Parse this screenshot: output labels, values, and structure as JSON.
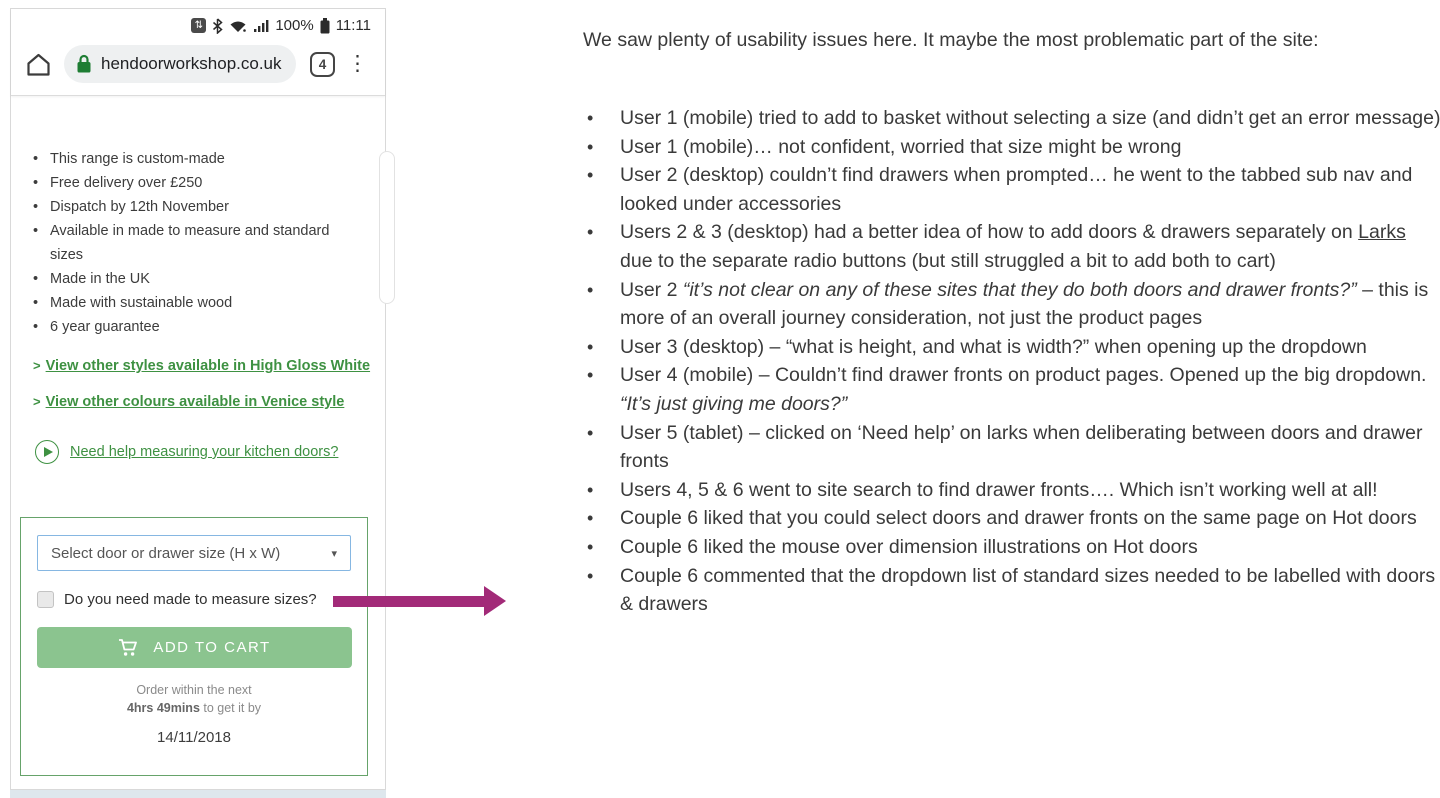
{
  "colors": {
    "link_green": "#3e9142",
    "button_green": "#8bc48f",
    "box_border_green": "#66a36a",
    "dropdown_border_blue": "#86b7e2",
    "arrow_magenta": "#a22a78"
  },
  "phone": {
    "status": {
      "icons": [
        "power-saver",
        "bluetooth",
        "wifi",
        "signal-bars",
        "battery"
      ],
      "power_glyph": "⇅",
      "battery_pct": "100%",
      "time": "11:11"
    },
    "browser": {
      "url": "hendoorworkshop.co.uk",
      "tab_count": "4",
      "menu_glyph": "⋮"
    },
    "features": [
      "This range is custom-made",
      "Free delivery over £250",
      "Dispatch by 12th November",
      "Available in made to measure and standard sizes",
      "Made in the UK",
      "Made with sustainable wood",
      "6 year guarantee"
    ],
    "links": [
      {
        "prefix": ">",
        "text": "View other styles available in High Gloss White"
      },
      {
        "prefix": ">",
        "text": "View other colours available in Venice style"
      }
    ],
    "help": {
      "text": "Need help measuring your kitchen doors?"
    },
    "product": {
      "dropdown_label": "Select door or drawer size (H x W)",
      "dropdown_arrow": "▾",
      "checkbox_label": "Do you need made to measure sizes?",
      "add_to_cart": "ADD TO CART",
      "order_line1": "Order within the next",
      "order_bold": "4hrs 49mins",
      "order_rest": " to get it by",
      "order_date": "14/11/2018"
    }
  },
  "notes": {
    "title": "We saw plenty of usability issues here.  It maybe the most problematic part of the site:",
    "bullets": [
      {
        "segments": [
          {
            "t": "User 1 (mobile) tried to add to basket without selecting a size (and didn’t get an error message)"
          }
        ]
      },
      {
        "segments": [
          {
            "t": "User 1 (mobile)… not confident, worried that size might be wrong"
          }
        ]
      },
      {
        "segments": [
          {
            "t": "User 2 (desktop) couldn’t find drawers when prompted… he went to the tabbed sub nav and looked under accessories"
          }
        ]
      },
      {
        "segments": [
          {
            "t": "Users 2 & 3 (desktop) had a better idea of how to add doors & drawers separately on "
          },
          {
            "t": "Larks",
            "u": true
          },
          {
            "t": " due to the separate radio buttons (but still struggled a bit to add both to cart)"
          }
        ]
      },
      {
        "segments": [
          {
            "t": "User 2 "
          },
          {
            "t": "“it’s not clear on any of these sites that they do both doors and drawer fronts?”",
            "i": true
          },
          {
            "t": " – this is more of an overall journey consideration, not just the product pages"
          }
        ]
      },
      {
        "segments": [
          {
            "t": "User 3 (desktop) – “what is height, and what is width?” when opening up the dropdown"
          }
        ]
      },
      {
        "segments": [
          {
            "t": "User 4 (mobile) – Couldn’t find drawer fronts on product pages.  Opened up the big dropdown.  "
          },
          {
            "t": "“It’s just giving me doors?”",
            "i": true
          }
        ]
      },
      {
        "segments": [
          {
            "t": "User 5 (tablet) – clicked on ‘Need help’ on larks when deliberating between doors and drawer fronts"
          }
        ]
      },
      {
        "segments": [
          {
            "t": "Users 4, 5 & 6 went to site search to find drawer fronts…. Which isn’t working well at all!"
          }
        ]
      },
      {
        "segments": [
          {
            "t": "Couple 6 liked that you could select doors and drawer fronts on the same page on Hot doors"
          }
        ]
      },
      {
        "segments": [
          {
            "t": "Couple 6 liked the mouse over dimension illustrations on Hot doors"
          }
        ]
      },
      {
        "segments": [
          {
            "t": "Couple 6 commented that the dropdown list of standard sizes needed to be labelled with doors & drawers"
          }
        ]
      }
    ]
  }
}
